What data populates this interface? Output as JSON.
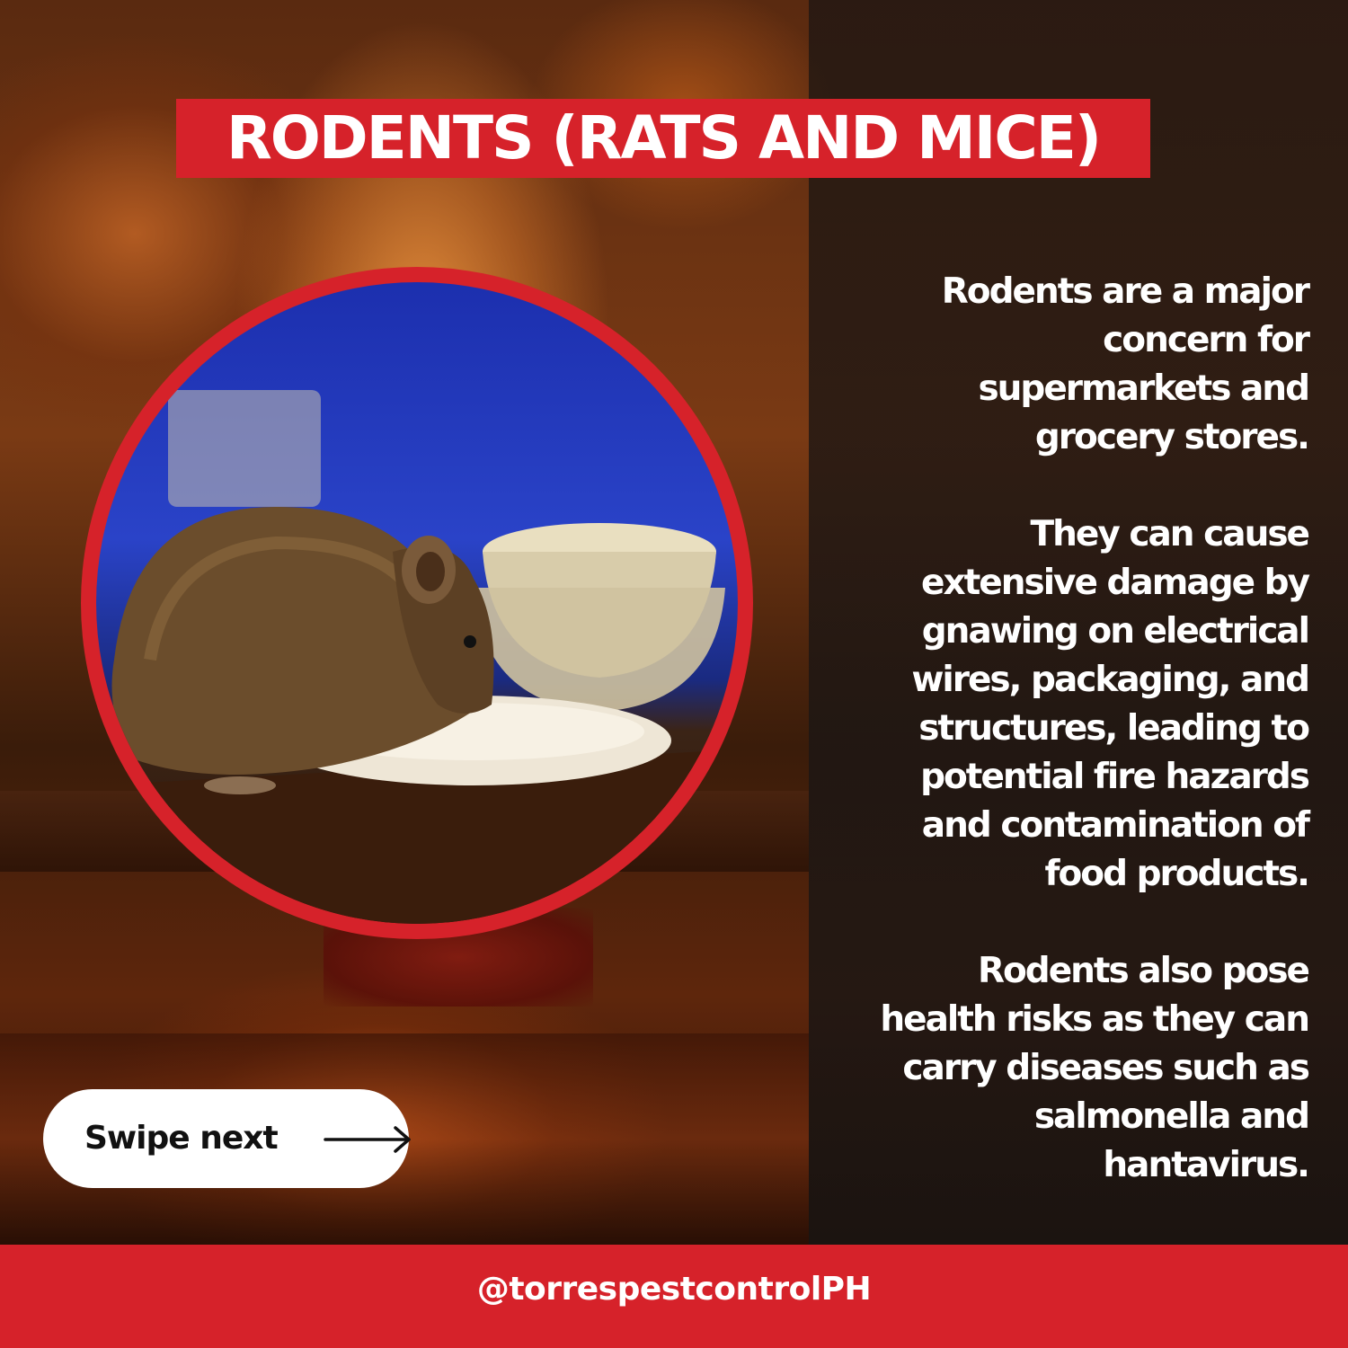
{
  "title": "RODENTS (RATS AND MICE)",
  "body": {
    "paragraphs": [
      "Rodents are a major concern for supermarkets and grocery stores.",
      "They can cause extensive damage by gnawing on electrical wires, packaging, and structures, leading to potential fire hazards and contamination of food products.",
      "Rodents also pose health risks as they can carry diseases such as salmonella and hantavirus."
    ]
  },
  "swipe": {
    "label": "Swipe next",
    "icon": "arrow-right-icon"
  },
  "footer": {
    "handle": "@torrespestcontrolPH"
  },
  "colors": {
    "accent": "#d6222a",
    "text": "#ffffff",
    "pill": "#ffffff"
  }
}
